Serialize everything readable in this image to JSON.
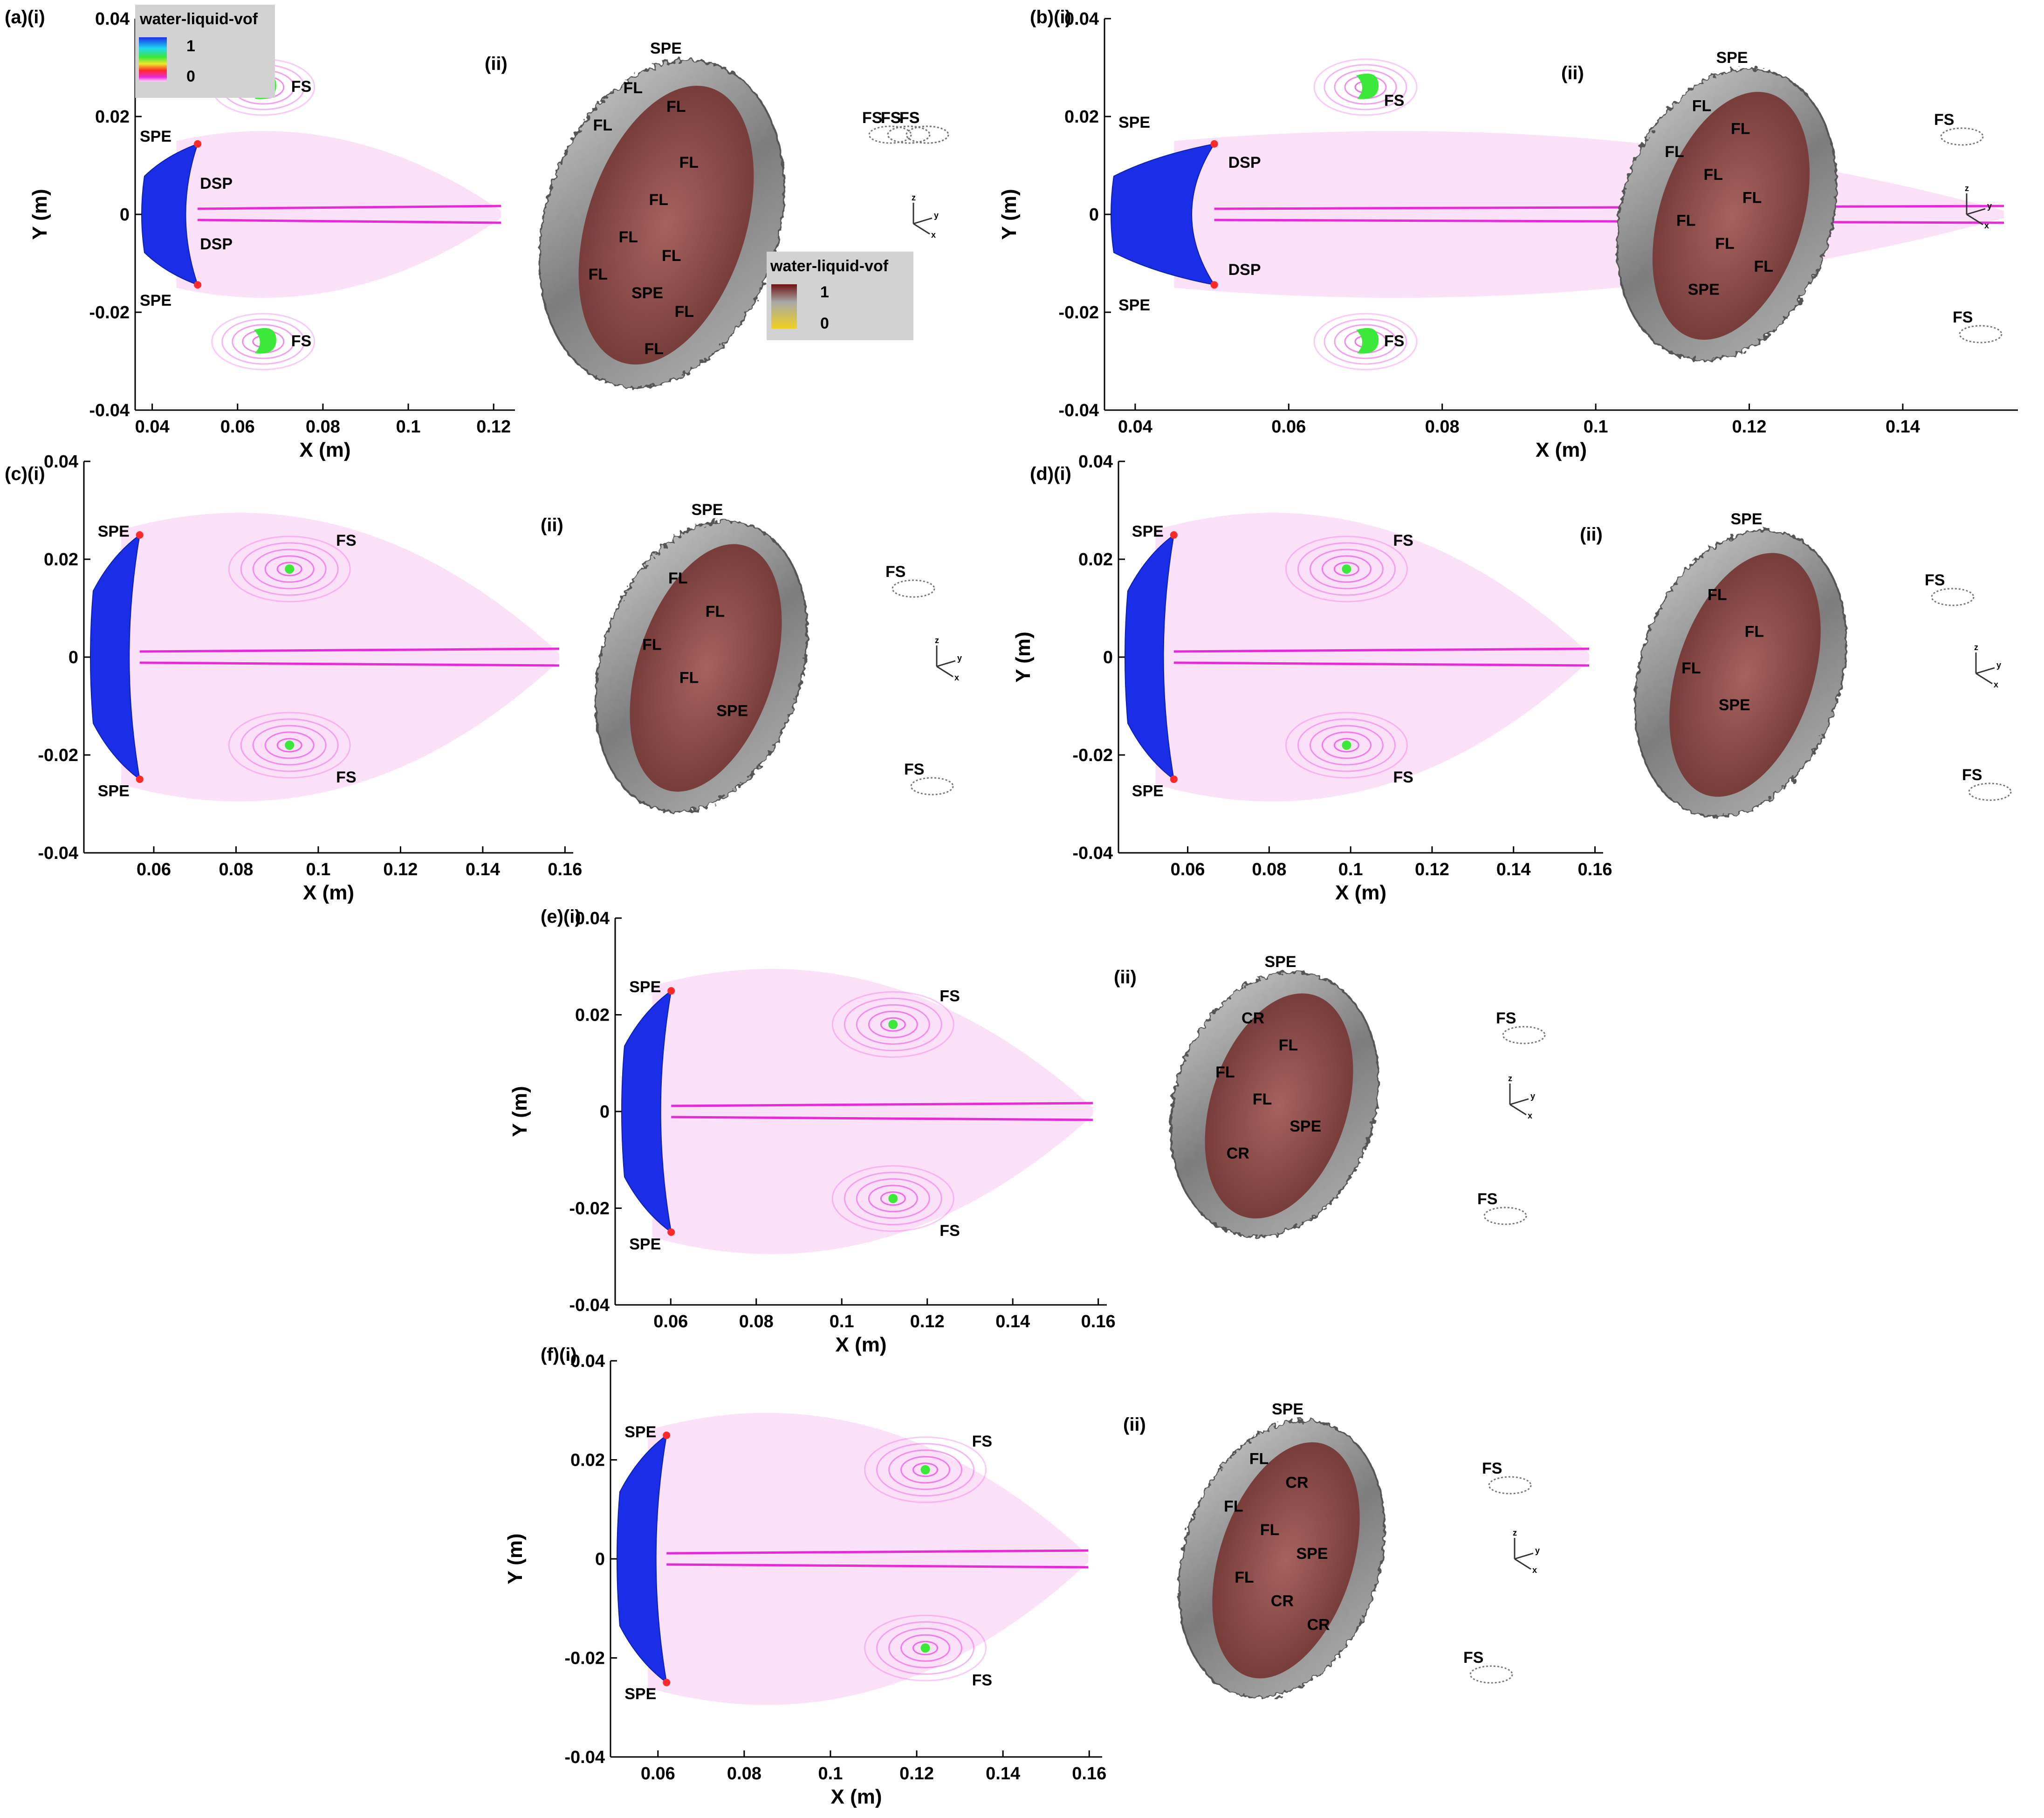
{
  "legend_2d": {
    "title": "water-liquid-vof",
    "max": "1",
    "min": "0"
  },
  "legend_3d": {
    "title": "water-liquid-vof",
    "max": "1",
    "min": "0"
  },
  "axes_labels": {
    "x": "X (m)",
    "y": "Y (m)"
  },
  "tri_axis": {
    "z": "z",
    "y": "y",
    "x": "x"
  },
  "colors": {
    "blue": "#1a2ee8",
    "green": "#3ce83a",
    "magenta": "#e62ad8",
    "pink": "#f7c8f3",
    "red_3d": "#8f4a48",
    "gray_3d": "#8e8e8e"
  },
  "panels": [
    {
      "id": "a",
      "label_i": "(a)(i)",
      "label_ii": "(ii)",
      "x_ticks": [
        "0.04",
        "0.06",
        "0.08",
        "0.1",
        "0.12"
      ],
      "y_ticks": [
        "0.04",
        "0.02",
        "0",
        "-0.02",
        "-0.04"
      ],
      "axis_x_range": [
        0.036,
        0.125
      ],
      "axis_y_range": [
        -0.04,
        0.04
      ],
      "labels_2d": [
        "SPE",
        "SPE",
        "DSP",
        "DSP",
        "FS",
        "FS"
      ],
      "labels_3d": [
        "SPE",
        "FL",
        "FL",
        "FL",
        "FS",
        "FL",
        "FS",
        "FL",
        "FS",
        "FL",
        "FL",
        "FL",
        "SPE",
        "FL",
        "FS",
        "FL",
        "FS"
      ]
    },
    {
      "id": "b",
      "label_i": "(b)(i)",
      "label_ii": "(ii)",
      "x_ticks": [
        "0.04",
        "0.06",
        "0.08",
        "0.1",
        "0.12",
        "0.14"
      ],
      "y_ticks": [
        "0.04",
        "0.02",
        "0",
        "-0.02",
        "-0.04"
      ],
      "axis_x_range": [
        0.036,
        0.155
      ],
      "axis_y_range": [
        -0.04,
        0.04
      ],
      "labels_2d": [
        "SPE",
        "DSP",
        "FS",
        "DSP",
        "FS",
        "SPE"
      ],
      "labels_3d": [
        "SPE",
        "FL",
        "FL",
        "FL",
        "FL",
        "FL",
        "FL",
        "FL",
        "FL",
        "SPE",
        "FS",
        "FS"
      ]
    },
    {
      "id": "c",
      "label_i": "(c)(i)",
      "label_ii": "(ii)",
      "x_ticks": [
        "0.06",
        "0.08",
        "0.1",
        "0.12",
        "0.14",
        "0.16"
      ],
      "y_ticks": [
        "0.04",
        "0.02",
        "0",
        "-0.02",
        "-0.04"
      ],
      "axis_x_range": [
        0.043,
        0.162
      ],
      "axis_y_range": [
        -0.04,
        0.04
      ],
      "labels_2d": [
        "SPE",
        "FS",
        "SPE",
        "FS"
      ],
      "labels_3d": [
        "SPE",
        "FL",
        "FL",
        "FL",
        "FL",
        "SPE",
        "FS",
        "FS"
      ]
    },
    {
      "id": "d",
      "label_i": "(d)(i)",
      "label_ii": "(ii)",
      "x_ticks": [
        "0.06",
        "0.08",
        "0.1",
        "0.12",
        "0.14",
        "0.16"
      ],
      "y_ticks": [
        "0.04",
        "0.02",
        "0",
        "-0.02",
        "-0.04"
      ],
      "axis_x_range": [
        0.043,
        0.162
      ],
      "axis_y_range": [
        -0.04,
        0.04
      ],
      "labels_2d": [
        "SPE",
        "FS",
        "SPE",
        "FS"
      ],
      "labels_3d": [
        "SPE",
        "FL",
        "FL",
        "FL",
        "SPE",
        "FS",
        "FS"
      ]
    },
    {
      "id": "e",
      "label_i": "(e)(i)",
      "label_ii": "(ii)",
      "x_ticks": [
        "0.06",
        "0.08",
        "0.1",
        "0.12",
        "0.14",
        "0.16"
      ],
      "y_ticks": [
        "0.04",
        "0.02",
        "0",
        "-0.02",
        "-0.04"
      ],
      "axis_x_range": [
        0.047,
        0.162
      ],
      "axis_y_range": [
        -0.04,
        0.04
      ],
      "labels_2d": [
        "SPE",
        "FS",
        "SPE",
        "FS"
      ],
      "labels_3d": [
        "SPE",
        "CR",
        "FL",
        "FL",
        "FL",
        "SPE",
        "CR",
        "FS",
        "FS"
      ]
    },
    {
      "id": "f",
      "label_i": "(f)(i)",
      "label_ii": "(ii)",
      "x_ticks": [
        "0.06",
        "0.08",
        "0.1",
        "0.12",
        "0.14",
        "0.16"
      ],
      "y_ticks": [
        "0.04",
        "0.02",
        "0",
        "-0.02",
        "-0.04"
      ],
      "axis_x_range": [
        0.049,
        0.163
      ],
      "axis_y_range": [
        -0.04,
        0.04
      ],
      "labels_2d": [
        "SPE",
        "FS",
        "SPE",
        "FS"
      ],
      "labels_3d": [
        "SPE",
        "FL",
        "CR",
        "FL",
        "FL",
        "SPE",
        "FL",
        "CR",
        "CR",
        "FS",
        "FS"
      ]
    }
  ]
}
